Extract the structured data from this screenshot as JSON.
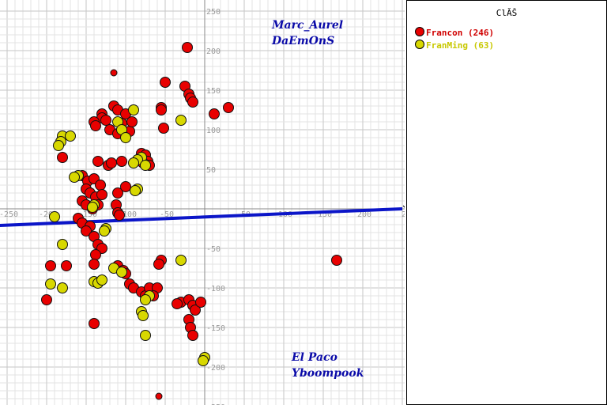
{
  "chart_data": {
    "type": "scatter",
    "xlim": [
      -260,
      250
    ],
    "ylim": [
      -250,
      250
    ],
    "grid": true,
    "legend_placement": "right",
    "legend_title": "ClĂŠ",
    "x_ticks": [
      "-250",
      "-200",
      "-150",
      "-100",
      "-50",
      "0",
      "50",
      "100",
      "150",
      "200",
      "2"
    ],
    "y_ticks": [
      "250",
      "200",
      "150",
      "100",
      "50",
      "-50",
      "-100",
      "-150",
      "-200",
      "-250"
    ],
    "annotations": [
      {
        "text": "Marc_Aurel",
        "x": 85,
        "y": 228
      },
      {
        "text": "DaEmOnS",
        "x": 85,
        "y": 208
      },
      {
        "text": "El Paco",
        "x": 110,
        "y": -192
      },
      {
        "text": "Yboompook",
        "x": 110,
        "y": -212
      }
    ],
    "trend_line": {
      "color": "#0b15c8",
      "points": [
        [
          -260,
          -21
        ],
        [
          250,
          0
        ]
      ]
    },
    "series": [
      {
        "name": "Francon (246)",
        "color": "#e80000",
        "points": [
          [
            -22,
            204
          ],
          [
            -115,
            172
          ],
          [
            -50,
            160
          ],
          [
            -25,
            155
          ],
          [
            -20,
            145
          ],
          [
            -18,
            140
          ],
          [
            -15,
            135
          ],
          [
            -55,
            128
          ],
          [
            -55,
            125
          ],
          [
            12,
            120
          ],
          [
            30,
            128
          ],
          [
            -130,
            120
          ],
          [
            -130,
            115
          ],
          [
            -115,
            130
          ],
          [
            -110,
            125
          ],
          [
            -100,
            120
          ],
          [
            -140,
            110
          ],
          [
            -138,
            105
          ],
          [
            -125,
            112
          ],
          [
            -120,
            100
          ],
          [
            -110,
            95
          ],
          [
            -105,
            108
          ],
          [
            -95,
            98
          ],
          [
            -92,
            110
          ],
          [
            -52,
            102
          ],
          [
            -80,
            70
          ],
          [
            -75,
            68
          ],
          [
            -72,
            60
          ],
          [
            -70,
            55
          ],
          [
            -78,
            58
          ],
          [
            -180,
            65
          ],
          [
            -135,
            60
          ],
          [
            -122,
            55
          ],
          [
            -118,
            58
          ],
          [
            -105,
            60
          ],
          [
            -155,
            42
          ],
          [
            -148,
            35
          ],
          [
            -140,
            38
          ],
          [
            -132,
            30
          ],
          [
            -150,
            25
          ],
          [
            -145,
            20
          ],
          [
            -138,
            15
          ],
          [
            -130,
            18
          ],
          [
            -155,
            10
          ],
          [
            -150,
            5
          ],
          [
            -142,
            0
          ],
          [
            -135,
            5
          ],
          [
            -110,
            20
          ],
          [
            -100,
            28
          ],
          [
            -112,
            5
          ],
          [
            -110,
            -5
          ],
          [
            -108,
            -8
          ],
          [
            -160,
            -12
          ],
          [
            -155,
            -18
          ],
          [
            -145,
            -22
          ],
          [
            -150,
            -28
          ],
          [
            -140,
            -35
          ],
          [
            -135,
            -45
          ],
          [
            -130,
            -50
          ],
          [
            -138,
            -58
          ],
          [
            -140,
            -70
          ],
          [
            -195,
            -72
          ],
          [
            -175,
            -72
          ],
          [
            -110,
            -72
          ],
          [
            -103,
            -78
          ],
          [
            -100,
            -82
          ],
          [
            -95,
            -95
          ],
          [
            -90,
            -100
          ],
          [
            -80,
            -105
          ],
          [
            -75,
            -110
          ],
          [
            -70,
            -100
          ],
          [
            -60,
            -100
          ],
          [
            -55,
            -65
          ],
          [
            -58,
            -70
          ],
          [
            -65,
            -110
          ],
          [
            -30,
            -118
          ],
          [
            -20,
            -115
          ],
          [
            -15,
            -122
          ],
          [
            -12,
            -128
          ],
          [
            -5,
            -118
          ],
          [
            -35,
            -120
          ],
          [
            -20,
            -140
          ],
          [
            -18,
            -150
          ],
          [
            -15,
            -160
          ],
          [
            -200,
            -115
          ],
          [
            -140,
            -145
          ],
          [
            -58,
            -237
          ],
          [
            167,
            -65
          ]
        ]
      },
      {
        "name": "FranMing (63)",
        "color": "#d8d800",
        "points": [
          [
            -90,
            125
          ],
          [
            -30,
            112
          ],
          [
            -110,
            110
          ],
          [
            -105,
            100
          ],
          [
            -100,
            90
          ],
          [
            -180,
            92
          ],
          [
            -170,
            92
          ],
          [
            -182,
            85
          ],
          [
            -185,
            80
          ],
          [
            -80,
            65
          ],
          [
            -85,
            62
          ],
          [
            -90,
            58
          ],
          [
            -75,
            55
          ],
          [
            -160,
            42
          ],
          [
            -165,
            40
          ],
          [
            -85,
            25
          ],
          [
            -88,
            23
          ],
          [
            -140,
            5
          ],
          [
            -142,
            2
          ],
          [
            -125,
            -25
          ],
          [
            -127,
            -28
          ],
          [
            -190,
            -10
          ],
          [
            -180,
            -45
          ],
          [
            -140,
            -92
          ],
          [
            -135,
            -94
          ],
          [
            -130,
            -90
          ],
          [
            -115,
            -75
          ],
          [
            -105,
            -80
          ],
          [
            -180,
            -100
          ],
          [
            -195,
            -95
          ],
          [
            -70,
            -110
          ],
          [
            -75,
            -115
          ],
          [
            -80,
            -130
          ],
          [
            -78,
            -135
          ],
          [
            -30,
            -65
          ],
          [
            -75,
            -160
          ],
          [
            0,
            -188
          ],
          [
            -2,
            -192
          ]
        ]
      }
    ]
  }
}
